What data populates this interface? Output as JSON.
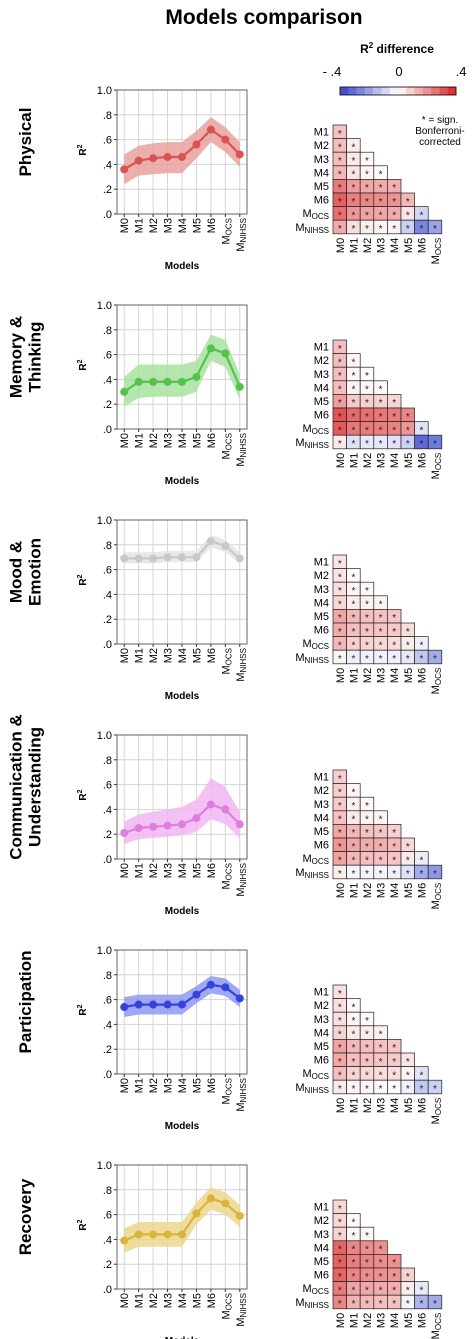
{
  "title": "Models comparison",
  "legend": {
    "title_base": "R",
    "title_sup": "2",
    "title_rest": " difference",
    "tick_left": "- .4",
    "tick_mid": "0",
    "tick_right": ".4",
    "note_line1": "* = sign.",
    "note_line2": "Bonferroni-",
    "note_line3": "corrected",
    "colors": {
      "negative": "#3344cc",
      "neutral": "#ffffff",
      "positive": "#dd2222"
    }
  },
  "axis": {
    "y_label_base": "R",
    "y_label_sup": "2",
    "x_label": "Models",
    "y_ticks": [
      "1.0",
      ".8",
      ".6",
      ".4",
      ".2",
      ".0"
    ],
    "y_tick_values": [
      1.0,
      0.8,
      0.6,
      0.4,
      0.2,
      0.0
    ],
    "ylim": [
      0,
      1
    ],
    "grid": true
  },
  "models": [
    {
      "base": "M0",
      "sub": ""
    },
    {
      "base": "M1",
      "sub": ""
    },
    {
      "base": "M2",
      "sub": ""
    },
    {
      "base": "M3",
      "sub": ""
    },
    {
      "base": "M4",
      "sub": ""
    },
    {
      "base": "M5",
      "sub": ""
    },
    {
      "base": "M6",
      "sub": ""
    },
    {
      "base": "M",
      "sub": "OCS"
    },
    {
      "base": "M",
      "sub": "NIHSS"
    }
  ],
  "chart_data": [
    {
      "type": "line",
      "name_lines": [
        "Physical"
      ],
      "color": "#d9534f",
      "band": "#eaa0a0",
      "values": [
        0.36,
        0.43,
        0.45,
        0.46,
        0.46,
        0.56,
        0.68,
        0.6,
        0.48
      ],
      "lower": [
        0.24,
        0.31,
        0.32,
        0.33,
        0.33,
        0.45,
        0.58,
        0.5,
        0.38
      ],
      "upper": [
        0.48,
        0.55,
        0.57,
        0.58,
        0.58,
        0.67,
        0.78,
        0.7,
        0.58
      ],
      "diff": [
        [
          0.28,
          0,
          0,
          0,
          0,
          0,
          0,
          0
        ],
        [
          0.3,
          0.08,
          0,
          0,
          0,
          0,
          0,
          0
        ],
        [
          0.3,
          0.1,
          0.03,
          0,
          0,
          0,
          0,
          0
        ],
        [
          0.32,
          0.12,
          0.05,
          0.02,
          0,
          0,
          0,
          0
        ],
        [
          0.6,
          0.45,
          0.4,
          0.38,
          0.36,
          0,
          0,
          0
        ],
        [
          0.72,
          0.58,
          0.55,
          0.52,
          0.5,
          0.32,
          0,
          0
        ],
        [
          0.65,
          0.48,
          0.42,
          0.4,
          0.38,
          0.12,
          -0.22,
          0
        ],
        [
          0.38,
          0.15,
          0.08,
          0.05,
          0.05,
          -0.25,
          -0.65,
          -0.5
        ]
      ],
      "sig": [
        [
          1,
          0,
          0,
          0,
          0,
          0,
          0,
          0
        ],
        [
          1,
          1,
          0,
          0,
          0,
          0,
          0,
          0
        ],
        [
          1,
          1,
          1,
          0,
          0,
          0,
          0,
          0
        ],
        [
          1,
          1,
          1,
          1,
          0,
          0,
          0,
          0
        ],
        [
          1,
          1,
          1,
          1,
          1,
          0,
          0,
          0
        ],
        [
          1,
          1,
          1,
          1,
          1,
          1,
          0,
          0
        ],
        [
          1,
          1,
          1,
          1,
          1,
          1,
          1,
          0
        ],
        [
          1,
          1,
          1,
          1,
          1,
          1,
          1,
          1
        ]
      ]
    },
    {
      "type": "line",
      "name_lines": [
        "Memory &",
        "Thinking"
      ],
      "color": "#55c24a",
      "band": "#a8e29f",
      "values": [
        0.3,
        0.38,
        0.38,
        0.38,
        0.38,
        0.42,
        0.65,
        0.61,
        0.34
      ],
      "lower": [
        0.18,
        0.25,
        0.26,
        0.26,
        0.26,
        0.3,
        0.55,
        0.5,
        0.24
      ],
      "upper": [
        0.42,
        0.52,
        0.52,
        0.52,
        0.52,
        0.55,
        0.76,
        0.72,
        0.44
      ],
      "diff": [
        [
          0.3,
          0,
          0,
          0,
          0,
          0,
          0,
          0
        ],
        [
          0.3,
          0.04,
          0,
          0,
          0,
          0,
          0,
          0
        ],
        [
          0.3,
          0.04,
          0.02,
          0,
          0,
          0,
          0,
          0
        ],
        [
          0.3,
          0.06,
          0.04,
          0.03,
          0,
          0,
          0,
          0
        ],
        [
          0.45,
          0.25,
          0.22,
          0.2,
          0.18,
          0,
          0,
          0
        ],
        [
          0.78,
          0.68,
          0.65,
          0.62,
          0.6,
          0.55,
          0,
          0
        ],
        [
          0.75,
          0.62,
          0.6,
          0.58,
          0.56,
          0.48,
          -0.15,
          0
        ],
        [
          0.1,
          -0.15,
          -0.12,
          -0.12,
          -0.15,
          -0.25,
          -0.8,
          -0.7
        ]
      ],
      "sig": [
        [
          1,
          0,
          0,
          0,
          0,
          0,
          0,
          0
        ],
        [
          1,
          1,
          0,
          0,
          0,
          0,
          0,
          0
        ],
        [
          1,
          1,
          1,
          0,
          0,
          0,
          0,
          0
        ],
        [
          1,
          1,
          1,
          1,
          0,
          0,
          0,
          0
        ],
        [
          1,
          1,
          1,
          1,
          1,
          0,
          0,
          0
        ],
        [
          1,
          1,
          1,
          1,
          1,
          1,
          0,
          0
        ],
        [
          1,
          1,
          1,
          1,
          1,
          1,
          1,
          0
        ],
        [
          1,
          1,
          1,
          1,
          1,
          1,
          1,
          1
        ]
      ]
    },
    {
      "type": "line",
      "name_lines": [
        "Mood &",
        "Emotion"
      ],
      "color": "#c8c8c8",
      "band": "#e4e4e4",
      "values": [
        0.69,
        0.69,
        0.69,
        0.7,
        0.7,
        0.7,
        0.83,
        0.79,
        0.69
      ],
      "lower": [
        0.65,
        0.65,
        0.65,
        0.66,
        0.66,
        0.66,
        0.78,
        0.74,
        0.65
      ],
      "upper": [
        0.74,
        0.74,
        0.74,
        0.75,
        0.75,
        0.75,
        0.88,
        0.84,
        0.74
      ],
      "diff": [
        [
          0.12,
          0,
          0,
          0,
          0,
          0,
          0,
          0
        ],
        [
          0.12,
          0.02,
          0,
          0,
          0,
          0,
          0,
          0
        ],
        [
          0.14,
          0.04,
          0.03,
          0,
          0,
          0,
          0,
          0
        ],
        [
          0.18,
          0.08,
          0.06,
          0.05,
          0,
          0,
          0,
          0
        ],
        [
          0.4,
          0.32,
          0.3,
          0.28,
          0.26,
          0,
          0,
          0
        ],
        [
          0.38,
          0.3,
          0.28,
          0.26,
          0.25,
          0.15,
          0,
          0
        ],
        [
          0.32,
          0.22,
          0.2,
          0.18,
          0.16,
          0.08,
          -0.08,
          0
        ],
        [
          0.05,
          -0.08,
          -0.08,
          -0.08,
          -0.08,
          -0.12,
          -0.3,
          -0.45
        ]
      ],
      "sig": [
        [
          1,
          0,
          0,
          0,
          0,
          0,
          0,
          0
        ],
        [
          1,
          1,
          0,
          0,
          0,
          0,
          0,
          0
        ],
        [
          1,
          1,
          1,
          0,
          0,
          0,
          0,
          0
        ],
        [
          1,
          1,
          1,
          1,
          0,
          0,
          0,
          0
        ],
        [
          1,
          1,
          1,
          1,
          1,
          0,
          0,
          0
        ],
        [
          1,
          1,
          1,
          1,
          1,
          1,
          0,
          0
        ],
        [
          1,
          1,
          1,
          1,
          1,
          1,
          1,
          0
        ],
        [
          1,
          1,
          1,
          1,
          1,
          1,
          1,
          1
        ]
      ]
    },
    {
      "type": "line",
      "name_lines": [
        "Communication &",
        "Understanding"
      ],
      "color": "#e07ee0",
      "band": "#f2b6f2",
      "values": [
        0.21,
        0.25,
        0.26,
        0.27,
        0.28,
        0.33,
        0.44,
        0.4,
        0.28
      ],
      "lower": [
        0.12,
        0.16,
        0.17,
        0.18,
        0.19,
        0.22,
        0.32,
        0.28,
        0.17
      ],
      "upper": [
        0.3,
        0.36,
        0.38,
        0.4,
        0.42,
        0.48,
        0.65,
        0.58,
        0.38
      ],
      "diff": [
        [
          0.22,
          0,
          0,
          0,
          0,
          0,
          0,
          0
        ],
        [
          0.22,
          0.04,
          0,
          0,
          0,
          0,
          0,
          0
        ],
        [
          0.24,
          0.06,
          0.03,
          0,
          0,
          0,
          0,
          0
        ],
        [
          0.28,
          0.1,
          0.06,
          0.04,
          0,
          0,
          0,
          0
        ],
        [
          0.4,
          0.32,
          0.28,
          0.26,
          0.22,
          0,
          0,
          0
        ],
        [
          0.48,
          0.4,
          0.38,
          0.36,
          0.32,
          0.18,
          0,
          0
        ],
        [
          0.42,
          0.32,
          0.3,
          0.28,
          0.26,
          0.1,
          -0.1,
          0
        ],
        [
          0.08,
          -0.05,
          -0.06,
          -0.06,
          -0.08,
          -0.15,
          -0.45,
          -0.55
        ]
      ],
      "sig": [
        [
          1,
          0,
          0,
          0,
          0,
          0,
          0,
          0
        ],
        [
          1,
          1,
          0,
          0,
          0,
          0,
          0,
          0
        ],
        [
          1,
          1,
          1,
          0,
          0,
          0,
          0,
          0
        ],
        [
          1,
          1,
          1,
          1,
          0,
          0,
          0,
          0
        ],
        [
          1,
          1,
          1,
          1,
          1,
          0,
          0,
          0
        ],
        [
          1,
          1,
          1,
          1,
          1,
          1,
          0,
          0
        ],
        [
          1,
          1,
          1,
          1,
          1,
          1,
          1,
          0
        ],
        [
          1,
          1,
          1,
          1,
          1,
          1,
          1,
          1
        ]
      ]
    },
    {
      "type": "line",
      "name_lines": [
        "Participation"
      ],
      "color": "#3344dd",
      "band": "#8f99ee",
      "values": [
        0.54,
        0.56,
        0.56,
        0.56,
        0.56,
        0.64,
        0.72,
        0.7,
        0.61
      ],
      "lower": [
        0.46,
        0.48,
        0.48,
        0.48,
        0.48,
        0.57,
        0.65,
        0.63,
        0.54
      ],
      "upper": [
        0.62,
        0.64,
        0.64,
        0.64,
        0.64,
        0.71,
        0.79,
        0.77,
        0.68
      ],
      "diff": [
        [
          0.14,
          0,
          0,
          0,
          0,
          0,
          0,
          0
        ],
        [
          0.14,
          0.03,
          0,
          0,
          0,
          0,
          0,
          0
        ],
        [
          0.14,
          0.04,
          0.03,
          0,
          0,
          0,
          0,
          0
        ],
        [
          0.2,
          0.1,
          0.08,
          0.06,
          0,
          0,
          0,
          0
        ],
        [
          0.42,
          0.32,
          0.3,
          0.28,
          0.26,
          0,
          0,
          0
        ],
        [
          0.4,
          0.3,
          0.28,
          0.26,
          0.24,
          0.12,
          0,
          0
        ],
        [
          0.3,
          0.2,
          0.18,
          0.16,
          0.15,
          0.05,
          -0.15,
          0
        ],
        [
          0.1,
          0.05,
          0.04,
          0.03,
          0.02,
          -0.08,
          -0.3,
          -0.25
        ]
      ],
      "sig": [
        [
          1,
          0,
          0,
          0,
          0,
          0,
          0,
          0
        ],
        [
          1,
          1,
          0,
          0,
          0,
          0,
          0,
          0
        ],
        [
          1,
          1,
          1,
          0,
          0,
          0,
          0,
          0
        ],
        [
          1,
          1,
          1,
          1,
          0,
          0,
          0,
          0
        ],
        [
          1,
          1,
          1,
          1,
          1,
          0,
          0,
          0
        ],
        [
          1,
          1,
          1,
          1,
          1,
          1,
          0,
          0
        ],
        [
          1,
          1,
          1,
          1,
          1,
          1,
          1,
          0
        ],
        [
          1,
          1,
          1,
          1,
          1,
          1,
          1,
          1
        ]
      ]
    },
    {
      "type": "line",
      "name_lines": [
        "Recovery"
      ],
      "color": "#d9b43a",
      "band": "#ecd78f",
      "values": [
        0.39,
        0.44,
        0.44,
        0.44,
        0.44,
        0.61,
        0.73,
        0.69,
        0.59
      ],
      "lower": [
        0.29,
        0.34,
        0.34,
        0.34,
        0.34,
        0.52,
        0.64,
        0.6,
        0.5
      ],
      "upper": [
        0.49,
        0.54,
        0.54,
        0.54,
        0.54,
        0.7,
        0.82,
        0.78,
        0.68
      ],
      "diff": [
        [
          0.18,
          0,
          0,
          0,
          0,
          0,
          0,
          0
        ],
        [
          0.18,
          0.03,
          0,
          0,
          0,
          0,
          0,
          0
        ],
        [
          0.2,
          0.04,
          0.03,
          0,
          0,
          0,
          0,
          0
        ],
        [
          0.7,
          0.55,
          0.52,
          0.5,
          0,
          0,
          0,
          0
        ],
        [
          0.72,
          0.58,
          0.55,
          0.52,
          0.5,
          0,
          0,
          0
        ],
        [
          0.7,
          0.55,
          0.52,
          0.5,
          0.48,
          0.2,
          0,
          0
        ],
        [
          0.6,
          0.42,
          0.4,
          0.38,
          0.36,
          0.08,
          -0.12,
          0
        ],
        [
          0.55,
          0.35,
          0.32,
          0.3,
          0.28,
          -0.05,
          -0.4,
          -0.45
        ]
      ],
      "sig": [
        [
          1,
          0,
          0,
          0,
          0,
          0,
          0,
          0
        ],
        [
          1,
          1,
          0,
          0,
          0,
          0,
          0,
          0
        ],
        [
          1,
          1,
          1,
          0,
          0,
          0,
          0,
          0
        ],
        [
          1,
          1,
          1,
          1,
          0,
          0,
          0,
          0
        ],
        [
          1,
          1,
          1,
          1,
          1,
          0,
          0,
          0
        ],
        [
          1,
          1,
          1,
          1,
          1,
          1,
          0,
          0
        ],
        [
          1,
          1,
          1,
          1,
          1,
          1,
          1,
          0
        ],
        [
          1,
          1,
          1,
          1,
          1,
          1,
          1,
          1
        ]
      ]
    }
  ]
}
